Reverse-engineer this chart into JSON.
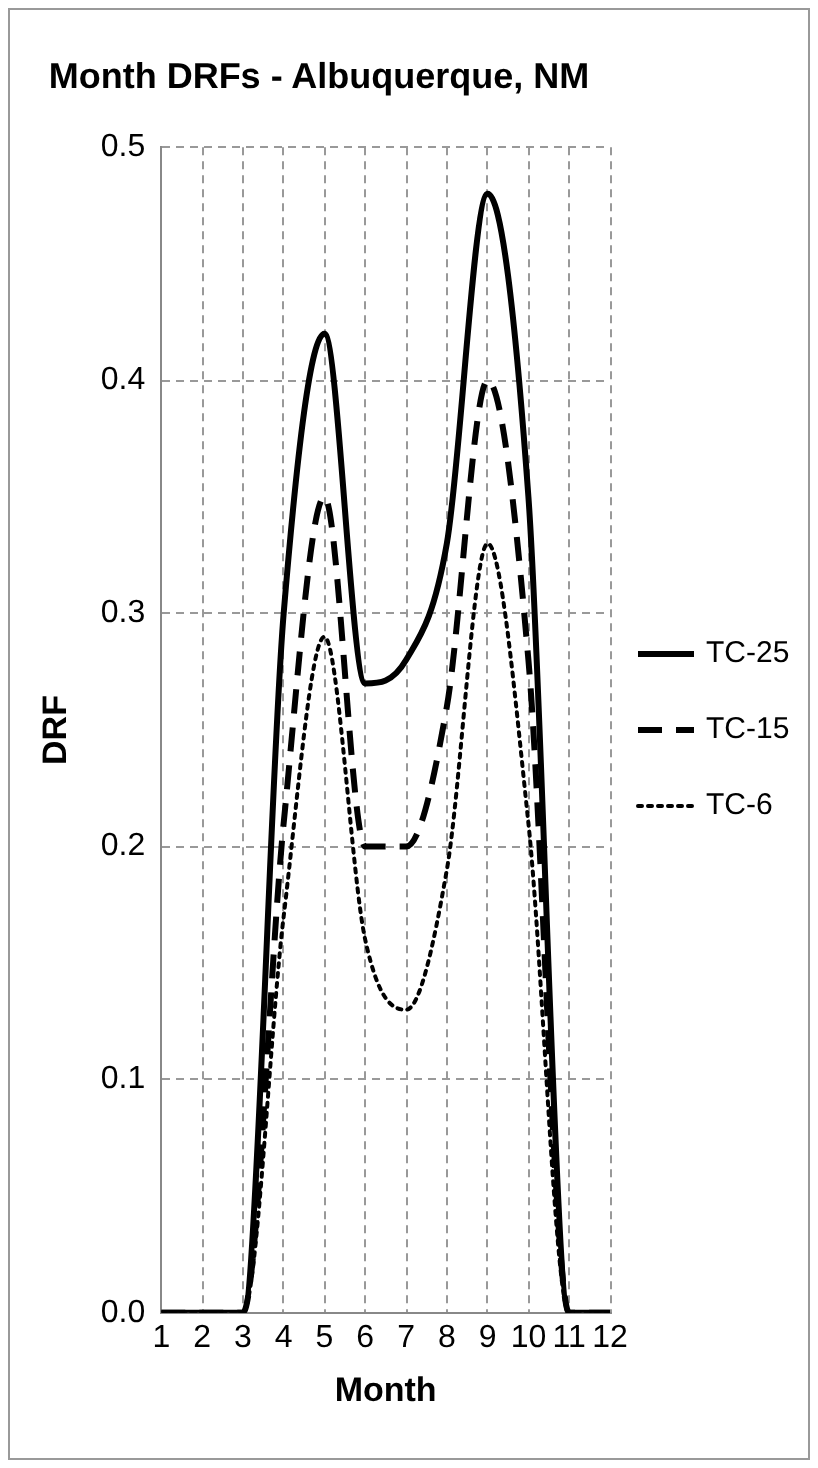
{
  "chart_data": {
    "type": "line",
    "title": "Month DRFs - Albuquerque, NM",
    "xlabel": "Month",
    "ylabel": "DRF",
    "x": [
      1,
      2,
      3,
      4,
      5,
      6,
      7,
      8,
      9,
      10,
      11,
      12
    ],
    "xlim": [
      1,
      12
    ],
    "xticks": [
      1,
      2,
      3,
      4,
      5,
      6,
      7,
      8,
      9,
      10,
      11,
      12
    ],
    "ylim": [
      0,
      0.5
    ],
    "yticks": [
      {
        "value": 0,
        "label": "0.0"
      },
      {
        "value": 0.1,
        "label": "0.1"
      },
      {
        "value": 0.2,
        "label": "0.2"
      },
      {
        "value": 0.3,
        "label": "0.3"
      },
      {
        "value": 0.4,
        "label": "0.4"
      },
      {
        "value": 0.5,
        "label": "0.5"
      }
    ],
    "grid": true,
    "legend": "right",
    "marker": "none",
    "series": [
      {
        "name": "TC-25",
        "color": "#000000",
        "line_style": "solid",
        "values": [
          0,
          0,
          0,
          0.3,
          0.42,
          0.27,
          0.28,
          0.33,
          0.48,
          0.35,
          0,
          0
        ]
      },
      {
        "name": "TC-15",
        "color": "#000000",
        "line_style": "dashed",
        "values": [
          0,
          0,
          0,
          0.21,
          0.35,
          0.2,
          0.2,
          0.26,
          0.4,
          0.28,
          0,
          0
        ]
      },
      {
        "name": "TC-6",
        "color": "#000000",
        "line_style": "dotted",
        "values": [
          0,
          0,
          0,
          0.17,
          0.29,
          0.16,
          0.13,
          0.19,
          0.33,
          0.21,
          0,
          0
        ]
      }
    ]
  }
}
